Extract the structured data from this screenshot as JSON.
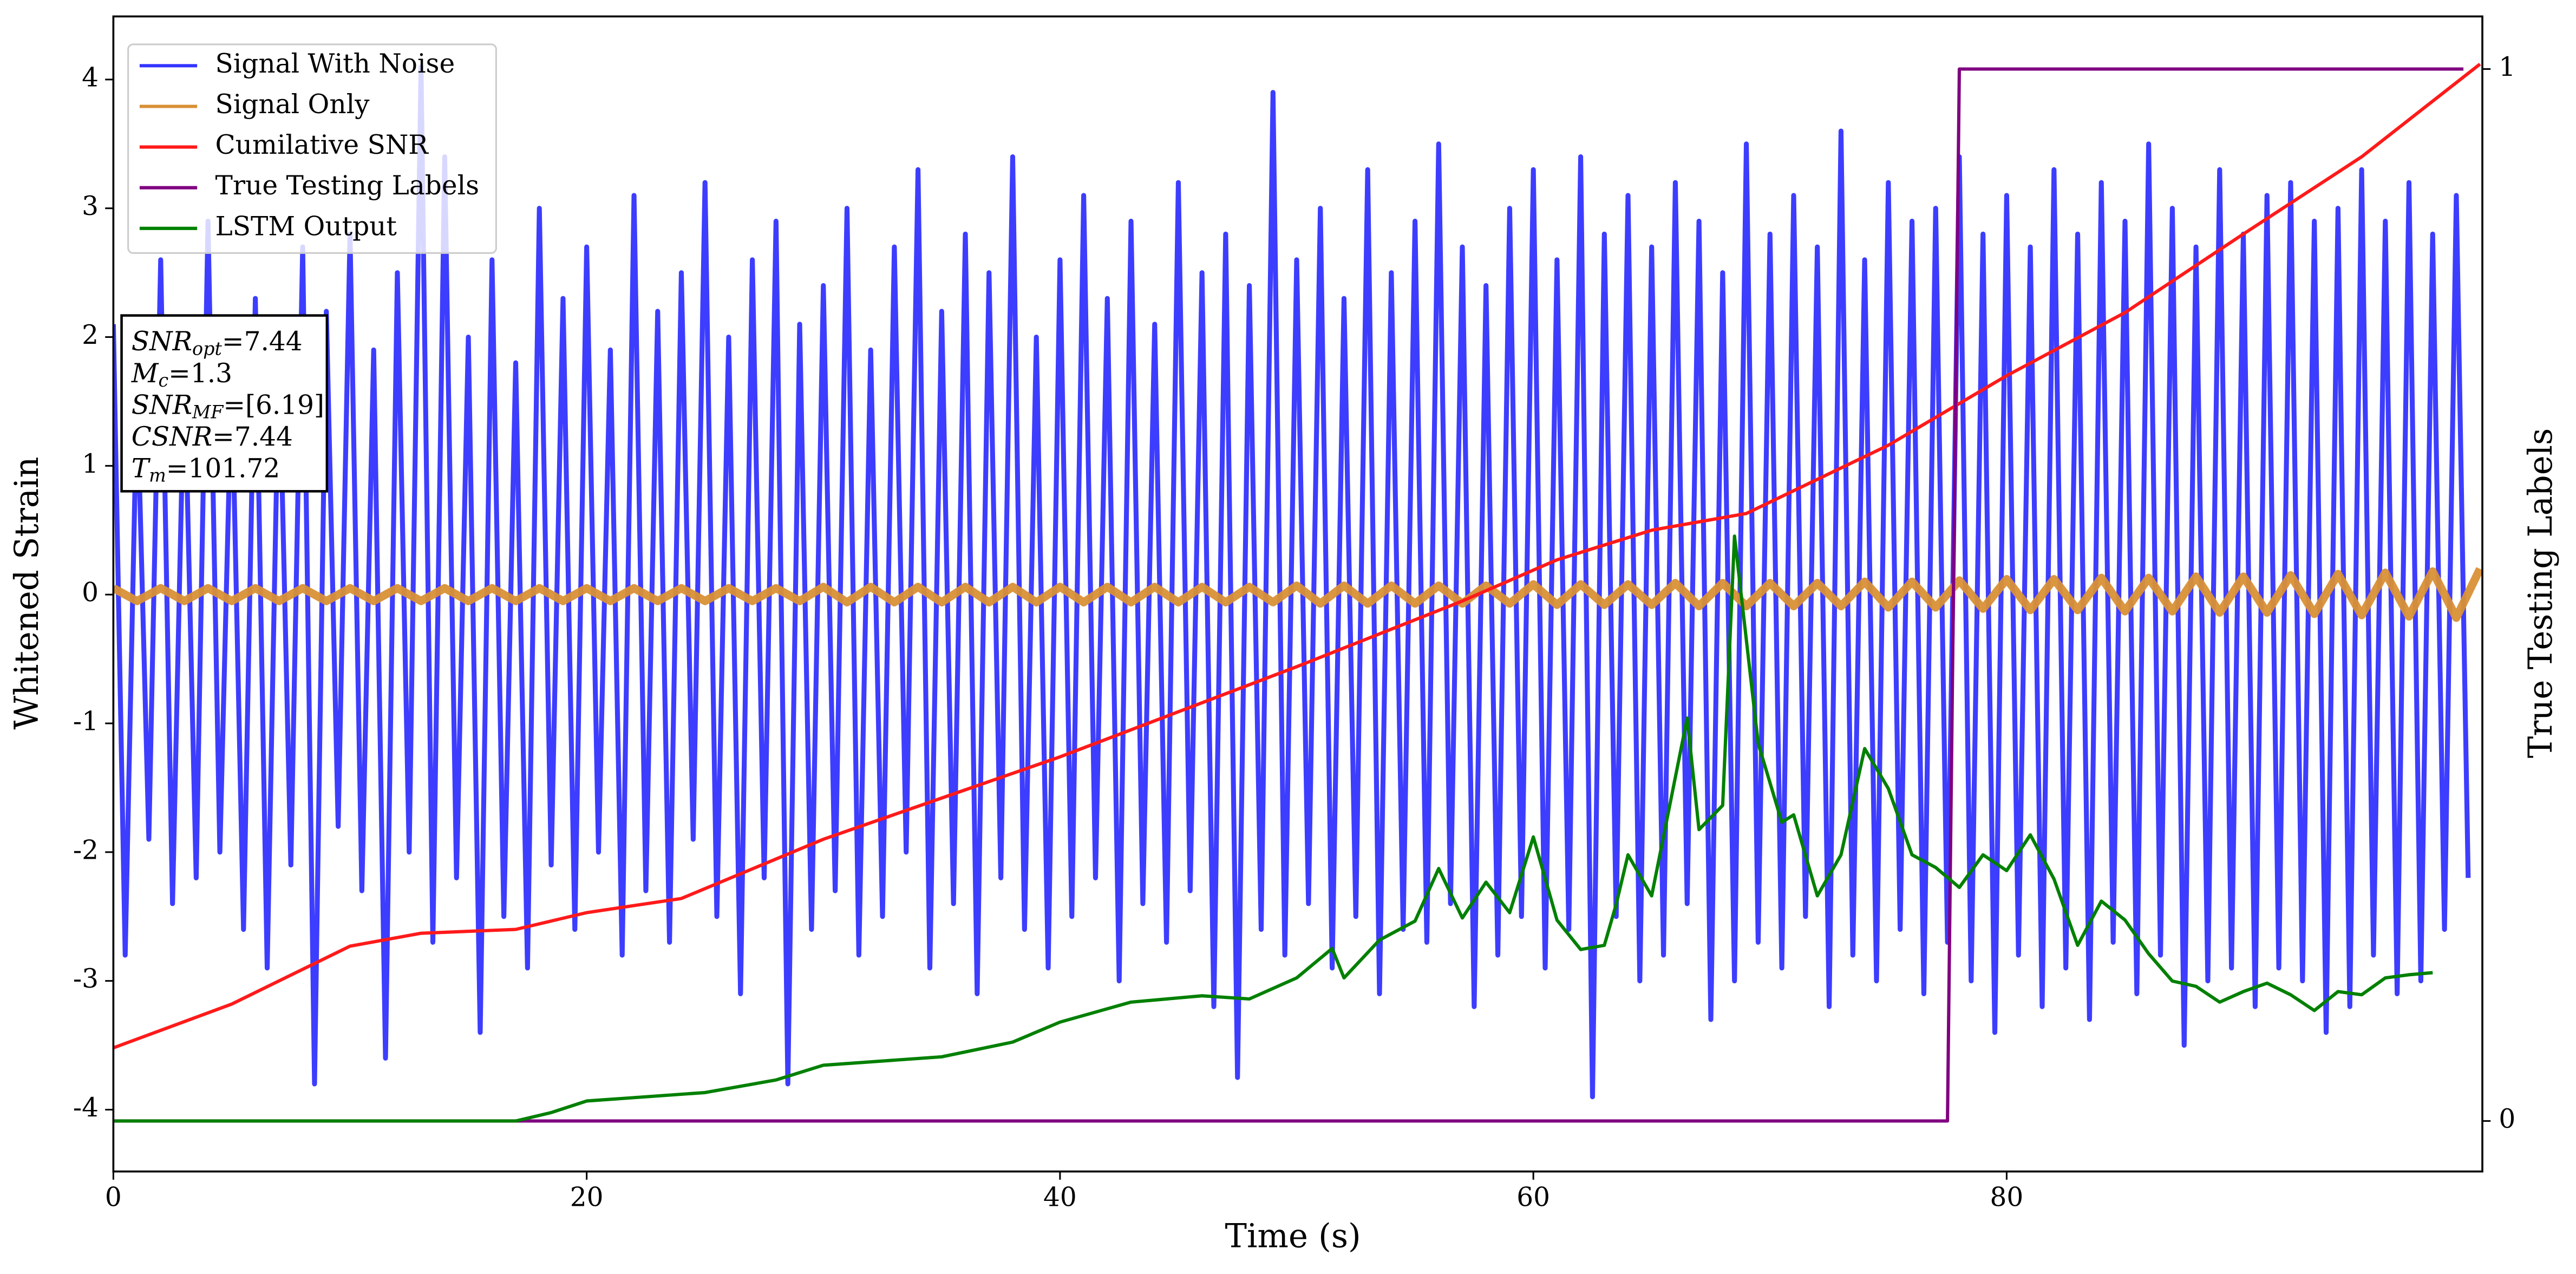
{
  "chart_data": {
    "type": "line",
    "xlabel": "Time (s)",
    "ylabel": "Whitened Strain",
    "y2label": "True Testing Labels",
    "xlim": [
      0,
      100.1
    ],
    "ylim": [
      -4.48,
      4.49
    ],
    "y2lim": [
      -0.048,
      1.05
    ],
    "xticks": [
      0,
      20,
      40,
      60,
      80
    ],
    "yticks": [
      -4,
      -3,
      -2,
      -1,
      0,
      1,
      2,
      3,
      4
    ],
    "y2ticks": [
      0,
      1
    ],
    "legend": "upper left",
    "annotations": [
      {
        "symbol": "SNR",
        "subscript": "opt",
        "text": "=7.44"
      },
      {
        "symbol": "M",
        "subscript": "c",
        "text": "=1.3"
      },
      {
        "symbol": "SNR",
        "subscript": "MF",
        "text": "=[6.19]"
      },
      {
        "symbol": "CSNR",
        "subscript": "",
        "text": "=7.44"
      },
      {
        "symbol": "T",
        "subscript": "m",
        "text": "=101.72"
      }
    ],
    "series": [
      {
        "name": "Signal With Noise",
        "color": "#3333ff",
        "axis": "y",
        "x": [
          0,
          0.5,
          1,
          1.5,
          2,
          2.5,
          3,
          3.5,
          4,
          4.5,
          5,
          5.5,
          6,
          6.5,
          7,
          7.5,
          8,
          8.5,
          9,
          9.5,
          10,
          10.5,
          11,
          11.5,
          12,
          12.5,
          13,
          13.5,
          14,
          14.5,
          15,
          15.5,
          16,
          16.5,
          17,
          17.5,
          18,
          18.5,
          19,
          19.5,
          20,
          20.5,
          21,
          21.5,
          22,
          22.5,
          23,
          23.5,
          24,
          24.5,
          25,
          25.5,
          26,
          26.5,
          27,
          27.5,
          28,
          28.5,
          29,
          29.5,
          30,
          30.5,
          31,
          31.5,
          32,
          32.5,
          33,
          33.5,
          34,
          34.5,
          35,
          35.5,
          36,
          36.5,
          37,
          37.5,
          38,
          38.5,
          39,
          39.5,
          40,
          40.5,
          41,
          41.5,
          42,
          42.5,
          43,
          43.5,
          44,
          44.5,
          45,
          45.5,
          46,
          46.5,
          47,
          47.5,
          48,
          48.5,
          49,
          49.5,
          50,
          50.5,
          51,
          51.5,
          52,
          52.5,
          53,
          53.5,
          54,
          54.5,
          55,
          55.5,
          56,
          56.5,
          57,
          57.5,
          58,
          58.5,
          59,
          59.5,
          60,
          60.5,
          61,
          61.5,
          62,
          62.5,
          63,
          63.5,
          64,
          64.5,
          65,
          65.5,
          66,
          66.5,
          67,
          67.5,
          68,
          68.5,
          69,
          69.5,
          70,
          70.5,
          71,
          71.5,
          72,
          72.5,
          73,
          73.5,
          74,
          74.5,
          75,
          75.5,
          76,
          76.5,
          77,
          77.5,
          78,
          78.5,
          79,
          79.5,
          80,
          80.5,
          81,
          81.5,
          82,
          82.5,
          83,
          83.5,
          84,
          84.5,
          85,
          85.5,
          86,
          86.5,
          87,
          87.5,
          88,
          88.5,
          89,
          89.5,
          90,
          90.5,
          91,
          91.5,
          92,
          92.5,
          93,
          93.5,
          94,
          94.5,
          95,
          95.5,
          96,
          96.5,
          97,
          97.5,
          98,
          98.5,
          99,
          99.5
        ],
        "values": [
          2.1,
          -2.8,
          1.6,
          -1.9,
          2.6,
          -2.4,
          1.8,
          -2.2,
          2.9,
          -2.0,
          1.7,
          -2.6,
          2.3,
          -2.9,
          1.9,
          -2.1,
          2.7,
          -3.8,
          2.2,
          -1.8,
          2.8,
          -2.3,
          1.9,
          -3.6,
          2.5,
          -2.0,
          4.1,
          -2.7,
          3.4,
          -2.2,
          2.0,
          -3.4,
          2.6,
          -2.5,
          1.8,
          -2.9,
          3.0,
          -2.1,
          2.3,
          -2.6,
          2.7,
          -2.0,
          1.9,
          -2.8,
          3.1,
          -2.3,
          2.2,
          -2.7,
          2.5,
          -1.9,
          3.2,
          -2.5,
          2.0,
          -3.1,
          2.6,
          -2.2,
          2.9,
          -3.8,
          2.1,
          -2.6,
          2.4,
          -2.3,
          3.0,
          -2.8,
          1.9,
          -2.5,
          2.7,
          -2.0,
          3.3,
          -2.9,
          2.2,
          -2.4,
          2.8,
          -3.1,
          2.5,
          -2.2,
          3.4,
          -2.6,
          2.0,
          -2.9,
          2.6,
          -2.5,
          3.1,
          -2.2,
          2.3,
          -3.0,
          2.9,
          -2.4,
          2.1,
          -2.7,
          3.2,
          -2.3,
          2.5,
          -3.2,
          2.8,
          -3.75,
          2.4,
          -2.6,
          3.9,
          -2.8,
          2.6,
          -2.4,
          3.0,
          -2.9,
          2.3,
          -2.5,
          3.3,
          -3.1,
          2.5,
          -2.6,
          2.9,
          -2.7,
          3.5,
          -2.4,
          2.7,
          -3.2,
          2.4,
          -2.8,
          3.0,
          -2.5,
          3.3,
          -2.9,
          2.6,
          -2.6,
          3.4,
          -3.9,
          2.8,
          -2.5,
          3.1,
          -3.0,
          2.7,
          -2.8,
          3.2,
          -2.4,
          2.9,
          -3.3,
          2.5,
          -3.0,
          3.5,
          -2.7,
          2.8,
          -2.9,
          3.1,
          -2.5,
          2.7,
          -3.2,
          3.6,
          -2.8,
          2.6,
          -3.0,
          3.2,
          -2.6,
          2.9,
          -3.1,
          3.0,
          -2.7,
          3.4,
          -3.0,
          2.8,
          -3.4,
          3.1,
          -2.8,
          2.7,
          -3.2,
          3.3,
          -2.9,
          2.8,
          -3.3,
          3.2,
          -2.7,
          2.9,
          -3.1,
          3.5,
          -2.8,
          3.0,
          -3.5,
          2.7,
          -3.0,
          3.3,
          -2.9,
          2.8,
          -3.2,
          3.1,
          -2.9,
          3.2,
          -3.0,
          2.9,
          -3.4,
          3.0,
          -3.2,
          3.3,
          -2.8,
          2.9,
          -3.1,
          3.2,
          -3.0,
          2.8,
          -2.6,
          3.1,
          -2.2
        ]
      },
      {
        "name": "Signal Only",
        "color": "#d99036",
        "axis": "y",
        "x": [
          0,
          1,
          2,
          3,
          4,
          5,
          6,
          7,
          8,
          9,
          10,
          11,
          12,
          13,
          14,
          15,
          16,
          17,
          18,
          19,
          20,
          21,
          22,
          23,
          24,
          25,
          26,
          27,
          28,
          29,
          30,
          31,
          32,
          33,
          34,
          35,
          36,
          37,
          38,
          39,
          40,
          41,
          42,
          43,
          44,
          45,
          46,
          47,
          48,
          49,
          50,
          51,
          52,
          53,
          54,
          55,
          56,
          57,
          58,
          59,
          60,
          61,
          62,
          63,
          64,
          65,
          66,
          67,
          68,
          69,
          70,
          71,
          72,
          73,
          74,
          75,
          76,
          77,
          78,
          79,
          80,
          81,
          82,
          83,
          84,
          85,
          86,
          87,
          88,
          89,
          90,
          91,
          92,
          93,
          94,
          95,
          96,
          97,
          98,
          99,
          100
        ],
        "values": [
          0.05,
          -0.05,
          0.05,
          -0.05,
          0.05,
          -0.05,
          0.05,
          -0.05,
          0.05,
          -0.05,
          0.05,
          -0.05,
          0.05,
          -0.05,
          0.05,
          -0.05,
          0.05,
          -0.05,
          0.05,
          -0.05,
          0.05,
          -0.05,
          0.05,
          -0.05,
          0.05,
          -0.05,
          0.05,
          -0.05,
          0.05,
          -0.05,
          0.06,
          -0.06,
          0.06,
          -0.06,
          0.06,
          -0.06,
          0.06,
          -0.06,
          0.06,
          -0.06,
          0.06,
          -0.06,
          0.06,
          -0.06,
          0.06,
          -0.06,
          0.06,
          -0.06,
          0.06,
          -0.06,
          0.07,
          -0.07,
          0.07,
          -0.07,
          0.07,
          -0.07,
          0.07,
          -0.07,
          0.07,
          -0.07,
          0.08,
          -0.08,
          0.08,
          -0.08,
          0.08,
          -0.08,
          0.09,
          -0.09,
          0.09,
          -0.09,
          0.09,
          -0.09,
          0.09,
          -0.09,
          0.1,
          -0.1,
          0.1,
          -0.1,
          0.11,
          -0.11,
          0.12,
          -0.12,
          0.12,
          -0.12,
          0.13,
          -0.13,
          0.13,
          -0.13,
          0.14,
          -0.14,
          0.14,
          -0.14,
          0.15,
          -0.15,
          0.16,
          -0.16,
          0.17,
          -0.17,
          0.18,
          -0.18,
          0.2
        ]
      },
      {
        "name": "Cumilative SNR",
        "color": "#ff1a1a",
        "axis": "y",
        "x": [
          0,
          5,
          10,
          13,
          17,
          20,
          24,
          30,
          40,
          50,
          57,
          61,
          65,
          69,
          75,
          80,
          85,
          90,
          95,
          100
        ],
        "values": [
          -3.52,
          -3.18,
          -2.73,
          -2.63,
          -2.6,
          -2.47,
          -2.36,
          -1.9,
          -1.26,
          -0.56,
          -0.05,
          0.27,
          0.5,
          0.63,
          1.16,
          1.7,
          2.19,
          2.8,
          3.4,
          4.12
        ]
      },
      {
        "name": "True Testing Labels",
        "color": "#800080",
        "axis": "y2",
        "x": [
          0,
          77.5,
          78,
          99.3
        ],
        "values": [
          0,
          0,
          1,
          1
        ]
      },
      {
        "name": "LSTM Output",
        "color": "#008000",
        "axis": "y2",
        "x": [
          0,
          17,
          18.5,
          20,
          25,
          28,
          30,
          35,
          38,
          40,
          43,
          46,
          48,
          50,
          51.5,
          52,
          53.5,
          55,
          56,
          57,
          58,
          59,
          60,
          61,
          62,
          63,
          63.5,
          64,
          65,
          66.5,
          67,
          68,
          68.5,
          69.5,
          70.5,
          71,
          72,
          73,
          74,
          75,
          76,
          77,
          78,
          79,
          80,
          81,
          82,
          83,
          84,
          85,
          86,
          87,
          88,
          89,
          90,
          91,
          92,
          93,
          94,
          95,
          96,
          97,
          98
        ],
        "values": [
          0,
          0,
          0.008,
          0.019,
          0.027,
          0.039,
          0.053,
          0.061,
          0.075,
          0.094,
          0.113,
          0.119,
          0.116,
          0.136,
          0.164,
          0.136,
          0.172,
          0.19,
          0.24,
          0.193,
          0.227,
          0.198,
          0.27,
          0.191,
          0.163,
          0.167,
          0.206,
          0.253,
          0.214,
          0.383,
          0.277,
          0.3,
          0.556,
          0.359,
          0.284,
          0.291,
          0.214,
          0.253,
          0.354,
          0.316,
          0.253,
          0.241,
          0.222,
          0.253,
          0.238,
          0.272,
          0.23,
          0.167,
          0.209,
          0.191,
          0.159,
          0.133,
          0.128,
          0.113,
          0.123,
          0.131,
          0.12,
          0.105,
          0.123,
          0.12,
          0.136,
          0.139,
          0.141
        ]
      }
    ]
  }
}
